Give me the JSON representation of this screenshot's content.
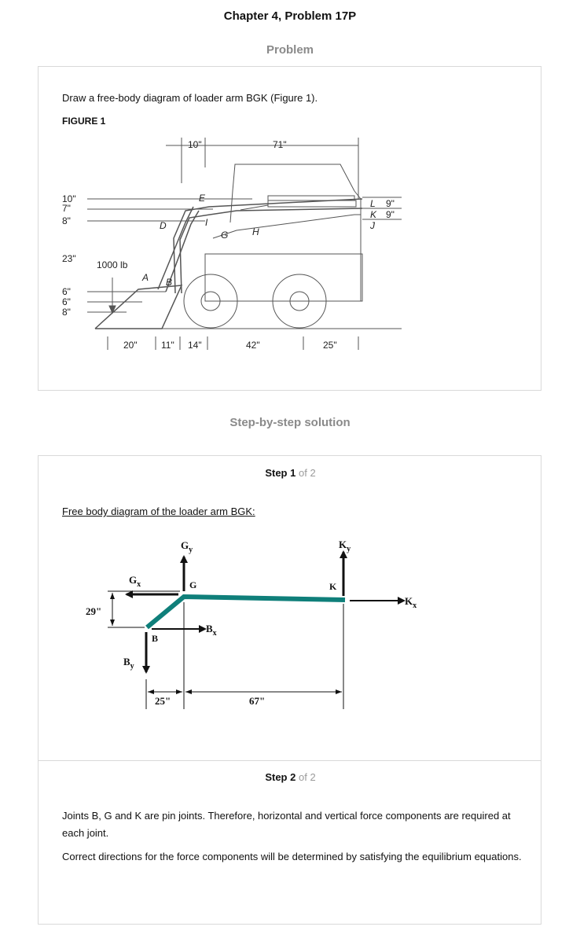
{
  "header": {
    "chapter_title": "Chapter 4, Problem 17P",
    "problem_heading": "Problem"
  },
  "problem": {
    "statement": "Draw a free-body diagram of loader arm BGK (Figure 1).",
    "figure_label": "FIGURE 1",
    "figure": {
      "top_dims": [
        "10\"",
        "71\""
      ],
      "left_dims": [
        "10\"",
        "7\"",
        "8\"",
        "23\"",
        "6\"",
        "6\"",
        "8\""
      ],
      "right_dims": [
        "9\"",
        "9\""
      ],
      "bottom_dims": [
        "20\"",
        "11\"",
        "14\"",
        "42\"",
        "25\""
      ],
      "load": "1000 lb",
      "point_labels": [
        "A",
        "B",
        "D",
        "E",
        "I",
        "G",
        "H",
        "L",
        "K",
        "J"
      ]
    }
  },
  "solution": {
    "heading": "Step-by-step solution",
    "step1": {
      "step_word": "Step",
      "step_num": "1",
      "of_text": "of 2",
      "caption": "Free body diagram of the loader arm BGK:",
      "diagram": {
        "labels": {
          "gy": "G",
          "gy_sub": "y",
          "gx": "G",
          "gx_sub": "x",
          "g": "G",
          "ky": "K",
          "ky_sub": "y",
          "k": "K",
          "kx": "K",
          "kx_sub": "x",
          "b": "B",
          "bx": "B",
          "bx_sub": "x",
          "by": "B",
          "by_sub": "y"
        },
        "dims": {
          "vertical": "29\"",
          "left": "25\"",
          "right": "67\""
        },
        "arm_color": "#0f7f7a"
      }
    },
    "step2": {
      "step_word": "Step",
      "step_num": "2",
      "of_text": "of 2",
      "para1": "Joints B, G and K are pin joints. Therefore, horizontal and vertical force components are required at each joint.",
      "para2": "Correct directions for the force components will be determined by satisfying the equilibrium equations."
    }
  }
}
